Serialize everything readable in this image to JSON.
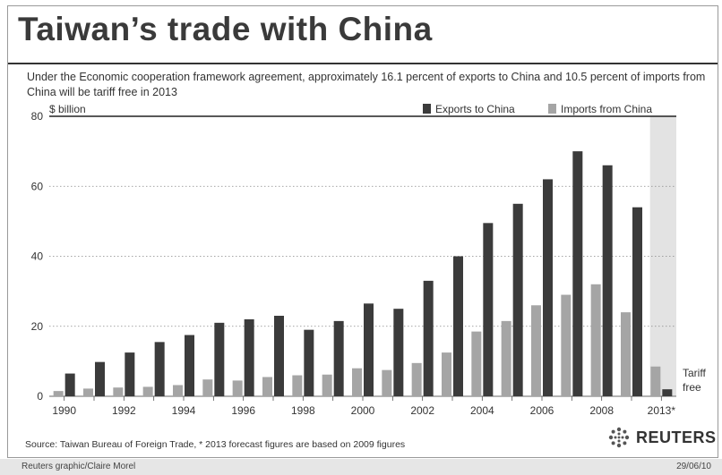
{
  "title": "Taiwan’s trade with China",
  "subtitle": "Under the Economic cooperation framework agreement, approximately 16.1 percent of exports to China and 10.5 percent of imports from China will be tariff free in 2013",
  "source": "Source: Taiwan Bureau of Foreign Trade, * 2013 forecast figures are based on 2009 figures",
  "brand": "REUTERS",
  "credit": "Reuters graphic/Claire Morel",
  "date": "29/06/10",
  "colors": {
    "exports": "#3b3b3b",
    "imports": "#a5a5a5",
    "highlight": "#e3e3e3"
  },
  "chart_data": {
    "type": "bar",
    "ylabel": "$ billion",
    "ylim": [
      0,
      80
    ],
    "yticks": [
      0,
      20,
      40,
      60,
      80
    ],
    "categories": [
      "1990",
      "1991",
      "1992",
      "1993",
      "1994",
      "1995",
      "1996",
      "1997",
      "1998",
      "1999",
      "2000",
      "2001",
      "2002",
      "2003",
      "2004",
      "2005",
      "2006",
      "2007",
      "2008",
      "2009",
      "2013*"
    ],
    "xtick_labels": [
      "1990",
      "",
      "1992",
      "",
      "1994",
      "",
      "1996",
      "",
      "1998",
      "",
      "2000",
      "",
      "2002",
      "",
      "2004",
      "",
      "2006",
      "",
      "2008",
      "",
      "2013*"
    ],
    "series": [
      {
        "name": "Exports to China",
        "values": [
          6.5,
          9.8,
          12.5,
          15.5,
          17.5,
          21,
          22,
          23,
          19,
          21.5,
          26.5,
          25,
          33,
          40,
          49.5,
          55,
          62,
          70,
          66,
          54,
          2
        ]
      },
      {
        "name": "Imports from China",
        "values": [
          1.5,
          2.2,
          2.5,
          2.7,
          3.2,
          4.8,
          4.5,
          5.5,
          6,
          6.2,
          8,
          7.5,
          9.5,
          12.5,
          18.5,
          21.5,
          26,
          29,
          32,
          24,
          8.5
        ]
      }
    ],
    "annotation": "Tariff free",
    "grid": true,
    "legend": "top-right"
  }
}
